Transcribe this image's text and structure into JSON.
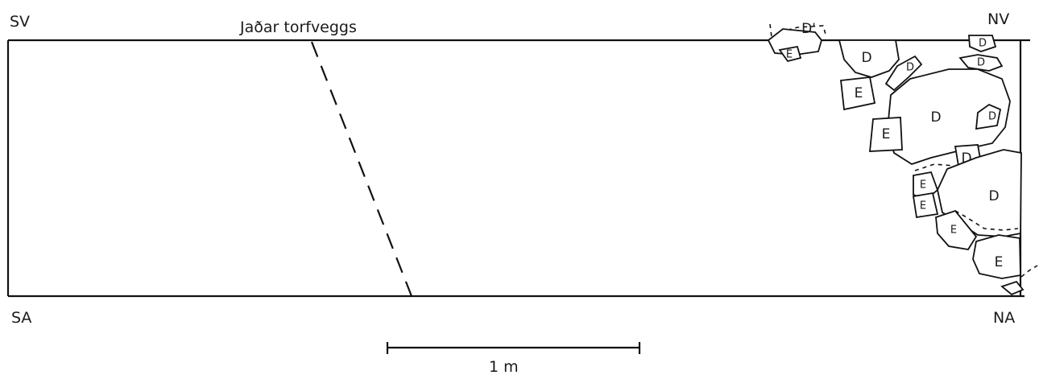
{
  "corners": {
    "sv": "SV",
    "nv": "NV",
    "sa": "SA",
    "na": "NA"
  },
  "wall_label": "Jaðar torfveggs",
  "scale_label": "1 m",
  "stones": [
    {
      "id": "d1",
      "label": "D'"
    },
    {
      "id": "e1",
      "label": "E"
    },
    {
      "id": "d2",
      "label": "D"
    },
    {
      "id": "d3",
      "label": "D"
    },
    {
      "id": "d4",
      "label": "D"
    },
    {
      "id": "d5",
      "label": "D"
    },
    {
      "id": "e2",
      "label": "E"
    },
    {
      "id": "d6",
      "label": "D"
    },
    {
      "id": "d7",
      "label": "D"
    },
    {
      "id": "e3",
      "label": "E"
    },
    {
      "id": "d8",
      "label": "D"
    },
    {
      "id": "e4",
      "label": "E"
    },
    {
      "id": "e5",
      "label": "E"
    },
    {
      "id": "d9",
      "label": "D"
    },
    {
      "id": "e6",
      "label": "E"
    },
    {
      "id": "e7",
      "label": "E"
    }
  ]
}
